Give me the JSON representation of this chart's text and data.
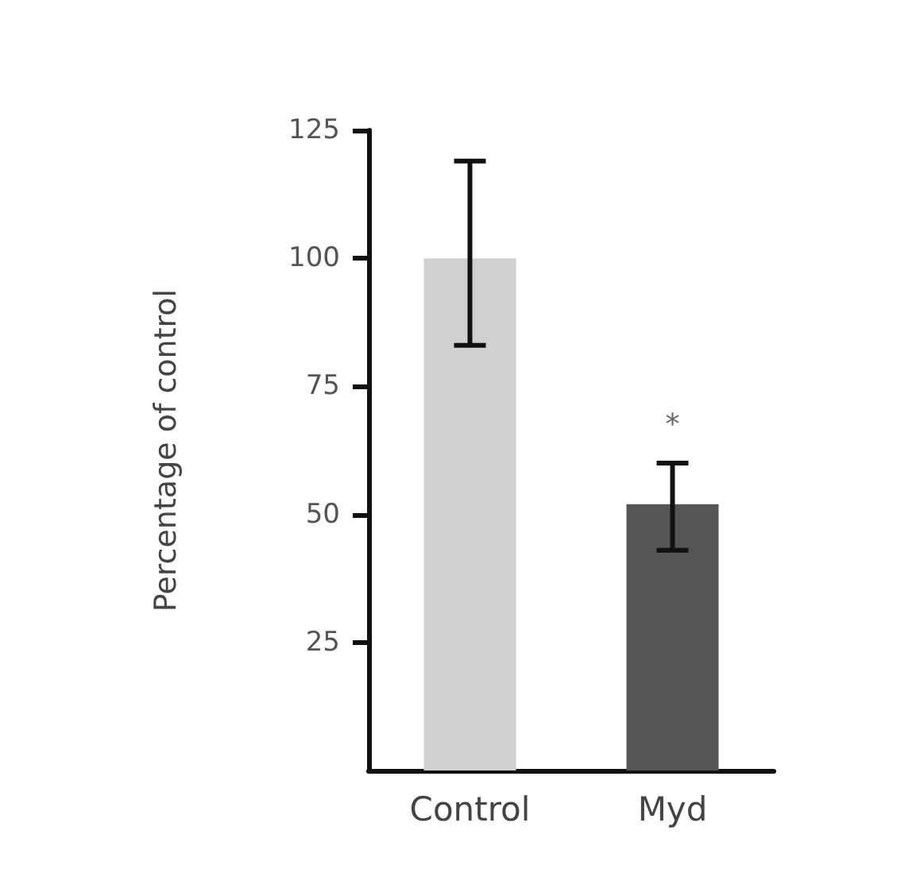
{
  "chart_data": {
    "type": "bar",
    "ylabel": "Percentage of control",
    "categories": [
      "Control",
      "Myd"
    ],
    "values": [
      100,
      52
    ],
    "colors": [
      "#d0d0d0",
      "#555555"
    ],
    "errors": [
      [
        83,
        119
      ],
      [
        43,
        60
      ]
    ],
    "ylim": [
      0,
      125
    ],
    "yticks": [
      25,
      50,
      75,
      100,
      125
    ],
    "grid": false,
    "annotations": [
      "*"
    ]
  }
}
